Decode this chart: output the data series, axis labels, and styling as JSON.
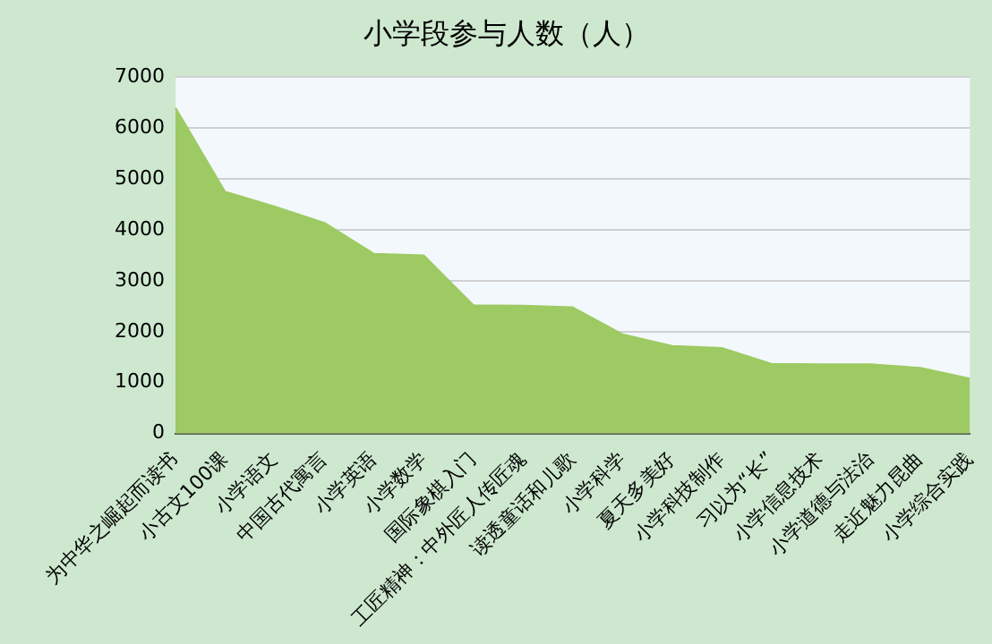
{
  "chart_data": {
    "type": "area",
    "title": "小学段参与人数（人）",
    "categories": [
      "为中华之崛起而读书",
      "小古文100课",
      "小学语文",
      "中国古代寓言",
      "小学英语",
      "小学数学",
      "国际象棋入门",
      "工匠精神：中外匠人传匠魂",
      "读透童话和儿歌",
      "小学科学",
      "夏天多美好",
      "小学科技制作",
      "习以为“长”",
      "小学信息技术",
      "小学道德与法治",
      "走近魅力昆曲",
      "小学综合实践"
    ],
    "values": [
      6400,
      4750,
      4460,
      4140,
      3530,
      3500,
      2520,
      2510,
      2480,
      1950,
      1720,
      1680,
      1370,
      1360,
      1360,
      1290,
      1080
    ],
    "color": "#9dca62",
    "ylim": [
      0,
      7000
    ],
    "yticks": [
      0,
      1000,
      2000,
      3000,
      4000,
      5000,
      6000,
      7000
    ],
    "grid": "y",
    "legend": false
  }
}
